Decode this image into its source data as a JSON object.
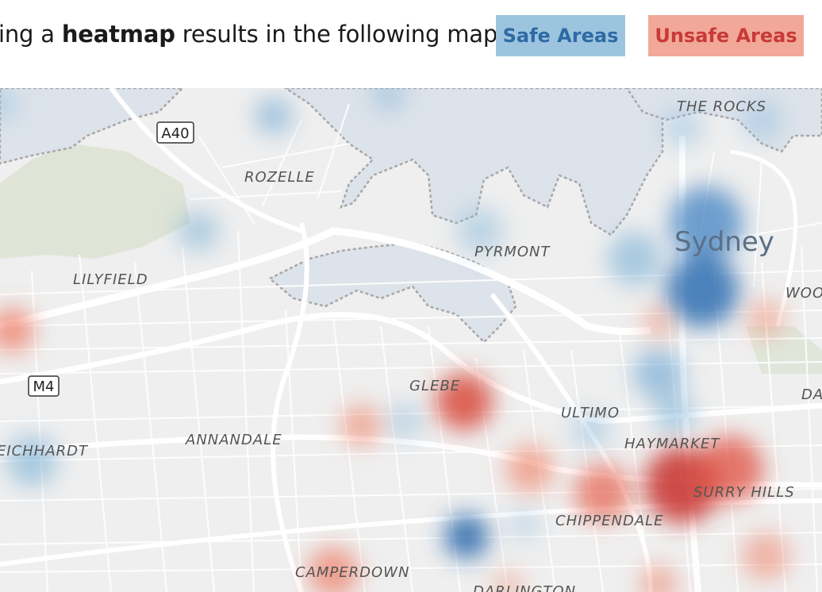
{
  "caption": {
    "prefix": "ing a ",
    "emphasis": "heatmap",
    "suffix": " results in the following map."
  },
  "legend": {
    "safe": {
      "label": "Safe Areas",
      "bg": "#9cc4de",
      "fg": "#2e6aa5"
    },
    "unsafe": {
      "label": "Unsafe Areas",
      "bg": "#f1a898",
      "fg": "#c83a38"
    }
  },
  "map": {
    "road_shields": {
      "a40": "A40",
      "m4": "M4"
    },
    "suburbs": {
      "the_rocks": "THE ROCKS",
      "rozelle": "ROZELLE",
      "lilyfield": "LILYFIELD",
      "pyrmont": "PYRMONT",
      "glebe": "GLEBE",
      "ultimo": "ULTIMO",
      "haymarket": "HAYMARKET",
      "annandale": "ANNANDALE",
      "leichhardt": "EICHHARDT",
      "surry_hills": "SURRY HILLS",
      "chippendale": "CHIPPENDALE",
      "camperdown": "CAMPERDOWN",
      "darlington": "DARLINGTON",
      "woolloomooloo": "WOO",
      "darlinghurst": "DA"
    },
    "city": "Sydney"
  }
}
